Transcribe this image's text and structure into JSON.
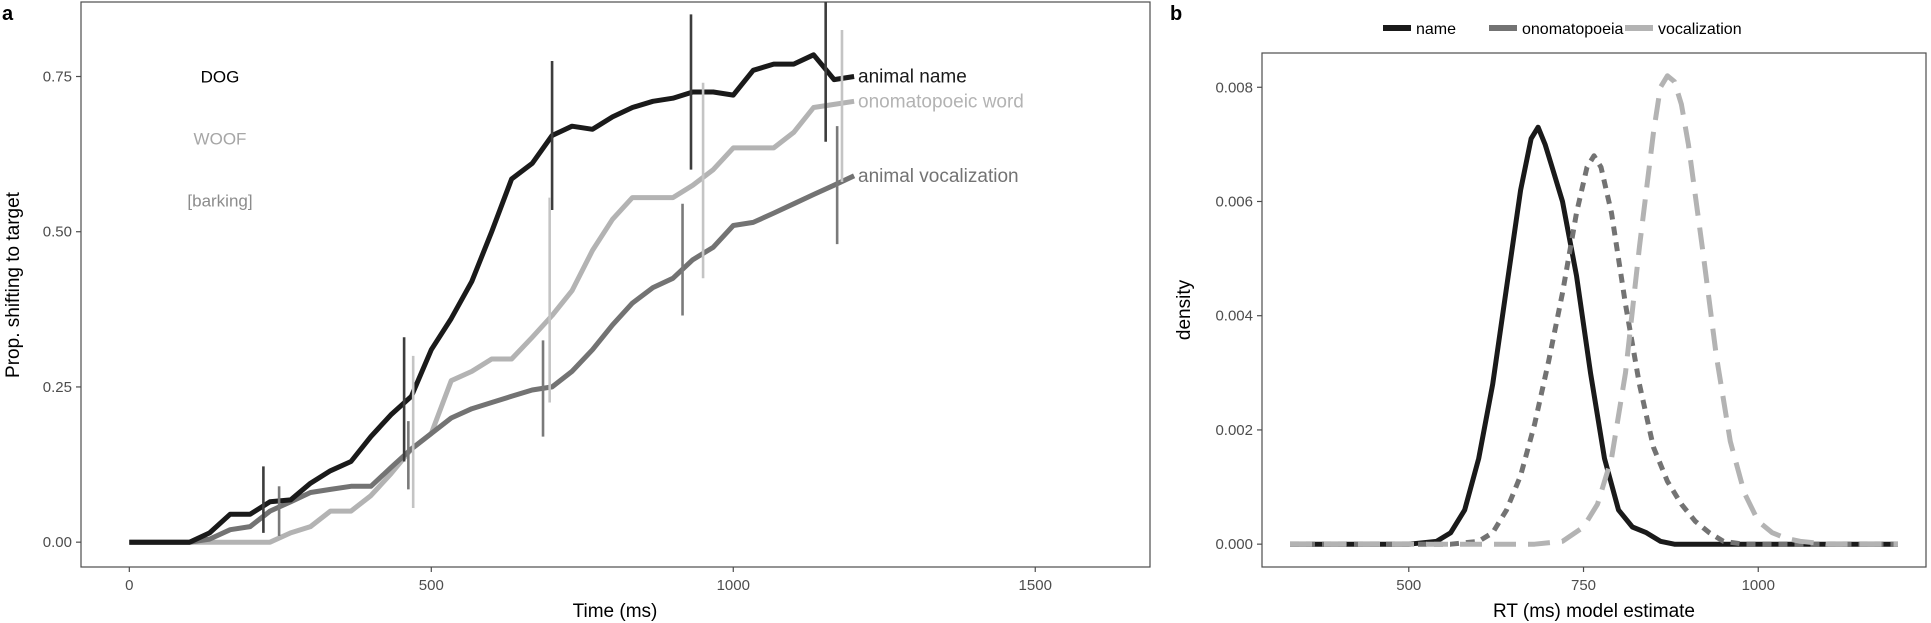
{
  "chart_data": [
    {
      "panel": "a",
      "type": "line",
      "xlabel": "Time (ms)",
      "ylabel": "Prop. shifting to target",
      "xlim": [
        -80,
        1690
      ],
      "ylim": [
        -0.04,
        0.87
      ],
      "x_ticks": [
        0,
        500,
        1000,
        1500
      ],
      "x_tick_labels": [
        "0",
        "500",
        "1000",
        "1500"
      ],
      "y_ticks": [
        0,
        0.25,
        0.5,
        0.75
      ],
      "y_tick_labels": [
        "0.00",
        "0.25",
        "0.50",
        "0.75"
      ],
      "grid": false,
      "condition_labels": [
        {
          "text": "DOG",
          "color": "#000000",
          "y": 0.75
        },
        {
          "text": "WOOF",
          "color": "#a6a6a6",
          "y": 0.65
        },
        {
          "text": "[barking]",
          "color": "#8c8c8c",
          "y": 0.55
        }
      ],
      "series": [
        {
          "name": "animal name",
          "color": "#1a1a1a",
          "x": [
            0,
            33,
            67,
            100,
            133,
            167,
            200,
            233,
            267,
            300,
            333,
            367,
            400,
            433,
            467,
            500,
            533,
            567,
            600,
            633,
            667,
            700,
            733,
            767,
            800,
            833,
            867,
            900,
            933,
            967,
            1000,
            1033,
            1067,
            1100,
            1133,
            1150,
            1167,
            1200
          ],
          "y": [
            0,
            0,
            0,
            0,
            0.015,
            0.045,
            0.045,
            0.065,
            0.068,
            0.095,
            0.115,
            0.13,
            0.17,
            0.205,
            0.235,
            0.31,
            0.36,
            0.42,
            0.5,
            0.585,
            0.61,
            0.655,
            0.67,
            0.665,
            0.685,
            0.7,
            0.71,
            0.715,
            0.725,
            0.725,
            0.72,
            0.76,
            0.77,
            0.77,
            0.785,
            0.765,
            0.745,
            0.75
          ]
        },
        {
          "name": "onomatopoeic word",
          "color": "#b3b3b3",
          "x": [
            0,
            33,
            67,
            100,
            133,
            167,
            200,
            233,
            267,
            300,
            333,
            367,
            400,
            433,
            467,
            500,
            533,
            567,
            600,
            633,
            667,
            700,
            733,
            767,
            800,
            833,
            867,
            900,
            933,
            967,
            1000,
            1033,
            1067,
            1100,
            1133,
            1167,
            1200
          ],
          "y": [
            0,
            0,
            0,
            0,
            0,
            0,
            0,
            0,
            0.015,
            0.025,
            0.05,
            0.05,
            0.075,
            0.11,
            0.15,
            0.175,
            0.26,
            0.275,
            0.295,
            0.295,
            0.33,
            0.365,
            0.405,
            0.47,
            0.52,
            0.555,
            0.555,
            0.555,
            0.575,
            0.6,
            0.635,
            0.635,
            0.635,
            0.66,
            0.7,
            0.705,
            0.71
          ]
        },
        {
          "name": "animal vocalization",
          "color": "#737373",
          "x": [
            0,
            33,
            67,
            100,
            133,
            167,
            200,
            233,
            267,
            300,
            333,
            367,
            400,
            433,
            467,
            500,
            533,
            567,
            600,
            633,
            667,
            700,
            733,
            767,
            800,
            833,
            867,
            900,
            933,
            967,
            1000,
            1033,
            1067,
            1100,
            1133,
            1167,
            1200
          ],
          "y": [
            0,
            0,
            0,
            0,
            0.005,
            0.02,
            0.025,
            0.05,
            0.065,
            0.08,
            0.085,
            0.09,
            0.09,
            0.12,
            0.15,
            0.175,
            0.2,
            0.215,
            0.225,
            0.235,
            0.245,
            0.25,
            0.275,
            0.31,
            0.35,
            0.385,
            0.41,
            0.425,
            0.455,
            0.475,
            0.51,
            0.515,
            0.53,
            0.545,
            0.56,
            0.575,
            0.59
          ]
        }
      ],
      "error_bars": [
        {
          "series": "animal name",
          "color": "#3d3d3d",
          "x": 222,
          "y_low": 0.015,
          "y_high": 0.122
        },
        {
          "series": "animal name",
          "color": "#3d3d3d",
          "x": 455,
          "y_low": 0.13,
          "y_high": 0.33
        },
        {
          "series": "animal name",
          "color": "#3d3d3d",
          "x": 700,
          "y_low": 0.535,
          "y_high": 0.775
        },
        {
          "series": "animal name",
          "color": "#3d3d3d",
          "x": 930,
          "y_low": 0.6,
          "y_high": 0.85
        },
        {
          "series": "animal name",
          "color": "#3d3d3d",
          "x": 1153,
          "y_low": 0.645,
          "y_high": 0.87
        },
        {
          "series": "onomatopoeic word",
          "color": "#c4c4c4",
          "x": 470,
          "y_low": 0.055,
          "y_high": 0.3
        },
        {
          "series": "onomatopoeic word",
          "color": "#c4c4c4",
          "x": 696,
          "y_low": 0.225,
          "y_high": 0.555
        },
        {
          "series": "onomatopoeic word",
          "color": "#c4c4c4",
          "x": 950,
          "y_low": 0.425,
          "y_high": 0.74
        },
        {
          "series": "onomatopoeic word",
          "color": "#c4c4c4",
          "x": 1180,
          "y_low": 0.58,
          "y_high": 0.825
        },
        {
          "series": "animal vocalization",
          "color": "#7a7a7a",
          "x": 248,
          "y_low": 0.01,
          "y_high": 0.09
        },
        {
          "series": "animal vocalization",
          "color": "#7a7a7a",
          "x": 462,
          "y_low": 0.085,
          "y_high": 0.195
        },
        {
          "series": "animal vocalization",
          "color": "#7a7a7a",
          "x": 685,
          "y_low": 0.17,
          "y_high": 0.325
        },
        {
          "series": "animal vocalization",
          "color": "#7a7a7a",
          "x": 916,
          "y_low": 0.365,
          "y_high": 0.545
        },
        {
          "series": "animal vocalization",
          "color": "#7a7a7a",
          "x": 1172,
          "y_low": 0.48,
          "y_high": 0.67
        }
      ]
    },
    {
      "panel": "b",
      "type": "area",
      "xlabel": "RT (ms) model estimate",
      "ylabel": "density",
      "xlim": [
        290,
        1240
      ],
      "ylim": [
        -0.0004,
        0.0086
      ],
      "x_ticks": [
        500,
        750,
        1000
      ],
      "x_tick_labels": [
        "500",
        "750",
        "1000"
      ],
      "y_ticks": [
        0,
        0.002,
        0.004,
        0.006,
        0.008
      ],
      "y_tick_labels": [
        "0.000",
        "0.002",
        "0.004",
        "0.006",
        "0.008"
      ],
      "grid": false,
      "legend": {
        "position": "top",
        "items": [
          "name",
          "onomatopoeia",
          "vocalization"
        ]
      },
      "series": [
        {
          "name": "name",
          "color": "#1a1a1a",
          "dash": "solid",
          "x": [
            330,
            500,
            540,
            560,
            580,
            600,
            620,
            640,
            660,
            675,
            685,
            695,
            705,
            720,
            740,
            760,
            780,
            800,
            820,
            840,
            860,
            880,
            900,
            940,
            1000,
            1100,
            1200
          ],
          "y": [
            0,
            0,
            5e-05,
            0.0002,
            0.0006,
            0.0015,
            0.0028,
            0.0045,
            0.0062,
            0.0071,
            0.0073,
            0.007,
            0.0066,
            0.006,
            0.0047,
            0.003,
            0.0015,
            0.0006,
            0.0003,
            0.0002,
            5e-05,
            0,
            0,
            0,
            0,
            0,
            0
          ]
        },
        {
          "name": "onomatopoeia",
          "color": "#737373",
          "dash": "short",
          "x": [
            330,
            560,
            600,
            620,
            640,
            660,
            680,
            700,
            720,
            740,
            755,
            765,
            775,
            790,
            810,
            830,
            850,
            870,
            890,
            910,
            930,
            950,
            980,
            1020,
            1200
          ],
          "y": [
            0,
            0,
            5e-05,
            0.0002,
            0.0006,
            0.0012,
            0.0021,
            0.0032,
            0.0044,
            0.0058,
            0.0066,
            0.0068,
            0.0066,
            0.0058,
            0.0042,
            0.0028,
            0.0017,
            0.0011,
            0.0007,
            0.0004,
            0.0002,
            5e-05,
            0,
            0,
            0
          ]
        },
        {
          "name": "vocalization",
          "color": "#b3b3b3",
          "dash": "long",
          "x": [
            330,
            680,
            720,
            750,
            770,
            790,
            810,
            830,
            850,
            860,
            870,
            880,
            890,
            900,
            920,
            940,
            960,
            980,
            1000,
            1020,
            1040,
            1060,
            1100,
            1200
          ],
          "y": [
            0,
            0,
            5e-05,
            0.0003,
            0.0007,
            0.0015,
            0.003,
            0.0052,
            0.0072,
            0.008,
            0.0082,
            0.0081,
            0.0077,
            0.007,
            0.0052,
            0.0033,
            0.0018,
            0.0009,
            0.0004,
            0.0002,
            0.0001,
            5e-05,
            0,
            0
          ]
        }
      ]
    }
  ]
}
